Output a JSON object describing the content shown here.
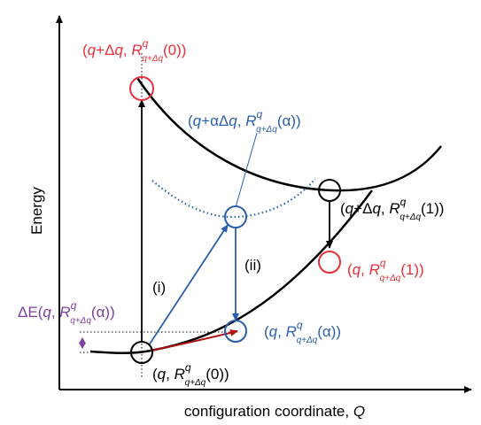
{
  "axes": {
    "y_label": "Energy",
    "x_label_prefix": "configuration coordinate, ",
    "x_label_var": "Q"
  },
  "colors": {
    "black": "#000000",
    "red": "#e8303a",
    "blue": "#2a5fb0",
    "purple": "#7b3fa0",
    "dark_red": "#b01010"
  },
  "labels": {
    "point_top_red": {
      "open": "(",
      "q": "q",
      "plus": "+Δ",
      "q2": "q",
      "comma": ", ",
      "R": "R",
      "sup": "q",
      "sub": "q+Δq",
      "arg": "(0))"
    },
    "point_mid_blue": {
      "open": "(",
      "q": "q",
      "plus": "+αΔ",
      "q2": "q",
      "comma": ", ",
      "R": "R",
      "sup": "q",
      "sub": "q+Δq",
      "arg": "(α))"
    },
    "point_right_black": {
      "open": "(",
      "q": "q",
      "plus": "+Δ",
      "q2": "q",
      "comma": ", ",
      "R": "R",
      "sup": "q",
      "sub": "q+Δq",
      "arg": "(1))"
    },
    "point_right_red": {
      "open": "(",
      "q": "q",
      "comma": ", ",
      "R": "R",
      "sup": "q",
      "sub": "q+Δq",
      "arg": "(1))"
    },
    "point_low_blue": {
      "open": "(",
      "q": "q",
      "comma": ", ",
      "R": "R",
      "sup": "q",
      "sub": "q+Δq",
      "arg": "(α))"
    },
    "point_min_black": {
      "open": "(",
      "q": "q",
      "comma": ", ",
      "R": "R",
      "sup": "q",
      "sub": "q+Δq",
      "arg": "(0))"
    },
    "delta_e": {
      "prefix": "ΔE(",
      "q": "q",
      "comma": ", ",
      "R": "R",
      "sup": "q",
      "sub": "q+Δq",
      "arg": "(α))"
    },
    "step_i": "(i)",
    "step_ii": "(ii)"
  }
}
